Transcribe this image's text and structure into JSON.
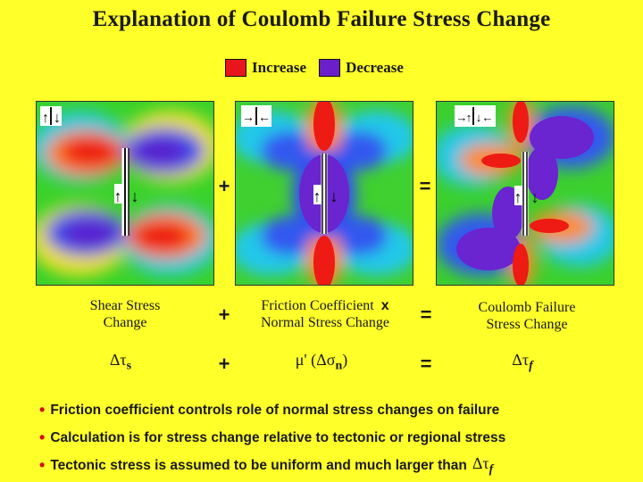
{
  "title": "Explanation of Coulomb Failure Stress Change",
  "legend": {
    "increase_label": "Increase",
    "decrease_label": "Decrease",
    "increase_color": "#e8151b",
    "decrease_color": "#6a1fc8"
  },
  "operators": {
    "plus": "+",
    "equals": "=",
    "times": "x"
  },
  "captions": {
    "shear": [
      "Shear Stress",
      "Change"
    ],
    "friction_line1": "Friction Coefficient",
    "friction_line2": "Normal Stress Change",
    "coulomb": [
      "Coulomb Failure",
      "Stress Change"
    ]
  },
  "formulas": {
    "shear_main": "Δτ",
    "shear_sub": "s",
    "friction_main": "μ' (Δσ",
    "friction_sub": "n",
    "friction_close": ")",
    "coulomb_main": "Δτ",
    "coulomb_sub": "f"
  },
  "bullets": [
    "Friction coefficient controls role of normal stress changes on failure",
    "Calculation is for stress change relative to tectonic or regional stress",
    "Tectonic stress is assumed to be uniform and much larger than"
  ],
  "bullet3_tail_main": "Δτ",
  "bullet3_tail_sub": "f",
  "icons": [
    "shear-sense-icon",
    "compression-arrows-icon",
    "fault-slip-icon"
  ]
}
